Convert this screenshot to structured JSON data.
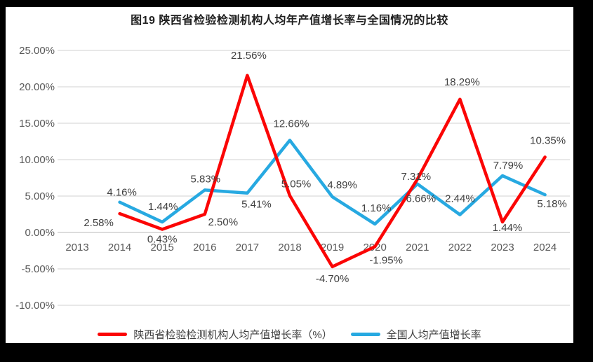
{
  "chart_data": {
    "type": "line",
    "title": "图19 陕西省检验检测机构人均年产值增长率与全国情况的比较",
    "categories": [
      "2013",
      "2014",
      "2015",
      "2016",
      "2017",
      "2018",
      "2019",
      "2020",
      "2021",
      "2022",
      "2023",
      "2024"
    ],
    "series": [
      {
        "name": "陕西省检验检测机构人均产值增长率（%）",
        "color": "#FB0505",
        "values": [
          null,
          2.58,
          0.43,
          2.5,
          21.56,
          5.05,
          -4.7,
          -1.95,
          7.31,
          18.29,
          1.44,
          10.35
        ],
        "labels": [
          "",
          "2.58%",
          "0.43%",
          "2.50%",
          "21.56%",
          "5.05%",
          "-4.70%",
          "-1.95%",
          "7.31%",
          "18.29%",
          "1.44%",
          "10.35%"
        ],
        "label_offsets": [
          [
            0,
            0
          ],
          [
            -30,
            18
          ],
          [
            0,
            19
          ],
          [
            26,
            16
          ],
          [
            2,
            -24
          ],
          [
            9,
            -12
          ],
          [
            0,
            22
          ],
          [
            16,
            24
          ],
          [
            -2,
            1
          ],
          [
            3,
            -20
          ],
          [
            7,
            13
          ],
          [
            4,
            -19
          ]
        ]
      },
      {
        "name": "全国人均产值增长率",
        "color": "#27A9E1",
        "values": [
          null,
          4.16,
          1.44,
          5.83,
          5.41,
          12.66,
          4.89,
          1.16,
          6.66,
          2.44,
          7.79,
          5.18
        ],
        "labels": [
          "",
          "4.16%",
          "1.44%",
          "5.83%",
          "5.41%",
          "12.66%",
          "4.89%",
          "1.16%",
          "6.66%",
          "2.44%",
          "7.79%",
          "5.18%"
        ],
        "label_offsets": [
          [
            0,
            0
          ],
          [
            3,
            -9
          ],
          [
            1,
            -17
          ],
          [
            1,
            -11
          ],
          [
            13,
            21
          ],
          [
            2,
            -19
          ],
          [
            14,
            -12
          ],
          [
            2,
            -18
          ],
          [
            5,
            26
          ],
          [
            0,
            -18
          ],
          [
            8,
            -10
          ],
          [
            10,
            18
          ]
        ]
      }
    ],
    "y_axis": {
      "min": -10,
      "max": 25,
      "step": 5,
      "ticks": [
        "25.00%",
        "20.00%",
        "15.00%",
        "10.00%",
        "5.00%",
        "0.00%",
        "-5.00%",
        "-10.00%"
      ]
    },
    "x_axis": {
      "labels": [
        "2013",
        "2014",
        "2015",
        "2016",
        "2017",
        "2018",
        "2019",
        "2020",
        "2021",
        "2022",
        "2023",
        "2024"
      ]
    },
    "legend_position": "bottom",
    "grid": true
  },
  "colors": {
    "frame": "#000000",
    "background": "#FFFFFF",
    "gridline": "#D9D9D9",
    "zero_line": "#C6C6C6",
    "axis_text": "#595959",
    "label_text": "#404040",
    "title_text": "#1F1F1F"
  }
}
